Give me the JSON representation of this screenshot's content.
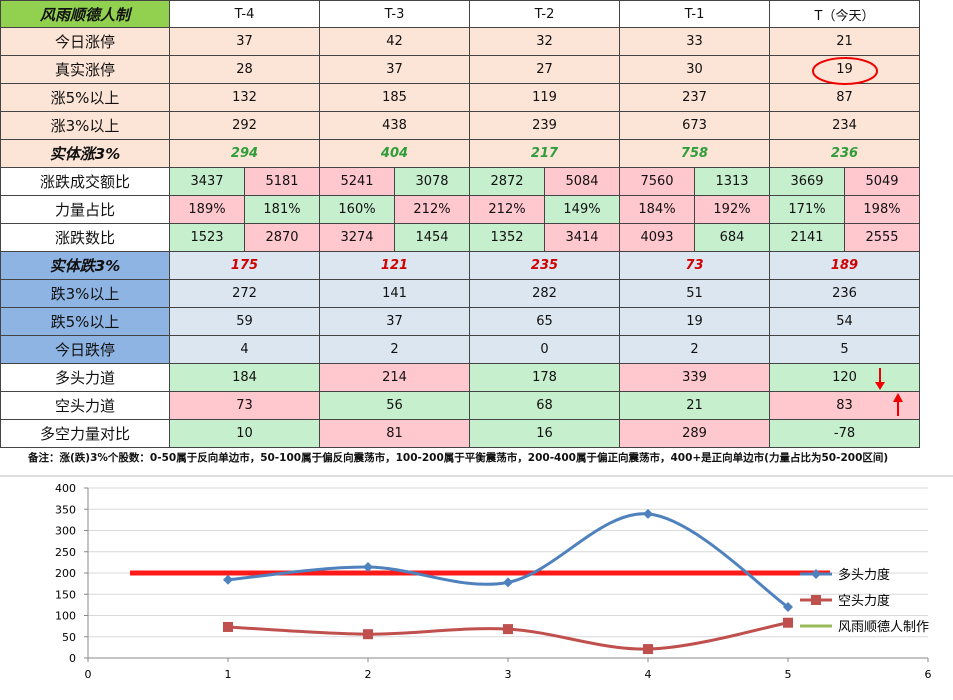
{
  "table": {
    "header": [
      "风雨顺德人制",
      "T-4",
      "T-3",
      "T-2",
      "T-1",
      "T（今天）"
    ],
    "header_fill": "#92d050",
    "rows": [
      {
        "label": "今日涨停",
        "cells": [
          37,
          42,
          32,
          33,
          21
        ],
        "label_fill": "#fce4d6",
        "fill": "#fce4d6"
      },
      {
        "label": "真实涨停",
        "cells": [
          28,
          37,
          27,
          30,
          19
        ],
        "label_fill": "#fce4d6",
        "fill": "#fce4d6"
      },
      {
        "label": "涨5%以上",
        "cells": [
          132,
          185,
          119,
          237,
          87
        ],
        "label_fill": "#fce4d6",
        "fill": "#fce4d6"
      },
      {
        "label": "涨3%以上",
        "cells": [
          292,
          438,
          239,
          673,
          234
        ],
        "label_fill": "#fce4d6",
        "fill": "#fce4d6"
      },
      {
        "label": "实体涨3%",
        "cells": [
          294,
          404,
          217,
          758,
          236
        ],
        "label_fill": "#fce4d6",
        "fill": "#fce4d6",
        "bold": true,
        "text_color": "#2e9e3a"
      },
      {
        "label": "涨跌成交额比",
        "cells": [
          [
            3437,
            5181
          ],
          [
            5241,
            3078
          ],
          [
            2872,
            5084
          ],
          [
            7560,
            1313
          ],
          [
            3669,
            5049
          ]
        ],
        "label_fill": "#ffffff",
        "fill": [
          [
            "#c6efce",
            "#ffc7ce"
          ],
          [
            "#ffc7ce",
            "#c6efce"
          ],
          [
            "#c6efce",
            "#ffc7ce"
          ],
          [
            "#ffc7ce",
            "#c6efce"
          ],
          [
            "#c6efce",
            "#ffc7ce"
          ]
        ]
      },
      {
        "label": "力量占比",
        "cells": [
          [
            "189%",
            "181%"
          ],
          [
            "160%",
            "212%"
          ],
          [
            "212%",
            "149%"
          ],
          [
            "184%",
            "192%"
          ],
          [
            "171%",
            "198%"
          ]
        ],
        "label_fill": "#ffffff",
        "fill": [
          [
            "#ffc7ce",
            "#c6efce"
          ],
          [
            "#c6efce",
            "#ffc7ce"
          ],
          [
            "#ffc7ce",
            "#c6efce"
          ],
          [
            "#ffc7ce",
            "#ffc7ce"
          ],
          [
            "#c6efce",
            "#ffc7ce"
          ]
        ]
      },
      {
        "label": "涨跌数比",
        "cells": [
          [
            1523,
            2870
          ],
          [
            3274,
            1454
          ],
          [
            1352,
            3414
          ],
          [
            4093,
            684
          ],
          [
            2141,
            2555
          ]
        ],
        "label_fill": "#ffffff",
        "fill": [
          [
            "#c6efce",
            "#ffc7ce"
          ],
          [
            "#ffc7ce",
            "#c6efce"
          ],
          [
            "#c6efce",
            "#ffc7ce"
          ],
          [
            "#ffc7ce",
            "#c6efce"
          ],
          [
            "#c6efce",
            "#ffc7ce"
          ]
        ]
      },
      {
        "label": "实体跌3%",
        "cells": [
          175,
          121,
          235,
          73,
          189
        ],
        "label_fill": "#8db4e2",
        "fill": "#dce6f1",
        "bold": true,
        "text_color": "#d00000"
      },
      {
        "label": "跌3%以上",
        "cells": [
          272,
          141,
          282,
          51,
          236
        ],
        "label_fill": "#8db4e2",
        "fill": "#dce6f1"
      },
      {
        "label": "跌5%以上",
        "cells": [
          59,
          37,
          65,
          19,
          54
        ],
        "label_fill": "#8db4e2",
        "fill": "#dce6f1"
      },
      {
        "label": "今日跌停",
        "cells": [
          4,
          2,
          0,
          2,
          5
        ],
        "label_fill": "#8db4e2",
        "fill": "#dce6f1"
      },
      {
        "label": "多头力道",
        "cells": [
          184,
          214,
          178,
          339,
          120
        ],
        "label_fill": "#ffffff",
        "fill": [
          "#c6efce",
          "#ffc7ce",
          "#c6efce",
          "#ffc7ce",
          "#c6efce"
        ]
      },
      {
        "label": "空头力道",
        "cells": [
          73,
          56,
          68,
          21,
          83
        ],
        "label_fill": "#ffffff",
        "fill": [
          "#ffc7ce",
          "#c6efce",
          "#c6efce",
          "#c6efce",
          "#ffc7ce"
        ]
      },
      {
        "label": "多空力量对比",
        "cells": [
          10,
          81,
          16,
          289,
          -78
        ],
        "label_fill": "#ffffff",
        "fill": [
          "#c6efce",
          "#ffc7ce",
          "#c6efce",
          "#ffc7ce",
          "#c6efce"
        ]
      }
    ],
    "note": "备注：涨(跌)3%个股数：0-50属于反向单边市，50-100属于偏反向震荡市，100-200属于平衡震荡市，200-400属于偏正向震荡市，400+是正向单边市(力量占比为50-200区间)"
  },
  "chart_data": {
    "type": "line",
    "x": [
      1,
      2,
      3,
      4,
      5
    ],
    "xlim": [
      0,
      6
    ],
    "xticks": [
      0,
      1,
      2,
      3,
      4,
      5,
      6
    ],
    "ylim": [
      0,
      400
    ],
    "yticks": [
      0,
      50,
      100,
      150,
      200,
      250,
      300,
      350,
      400
    ],
    "grid": true,
    "series": [
      {
        "name": "多头力度",
        "color": "#4f81bd",
        "marker": "diamond",
        "values": [
          184,
          214,
          178,
          339,
          120
        ]
      },
      {
        "name": "空头力度",
        "color": "#c0504d",
        "marker": "square",
        "values": [
          73,
          56,
          68,
          21,
          83
        ]
      },
      {
        "name": "风雨顺德人制作",
        "color": "#9bbb59"
      }
    ]
  }
}
